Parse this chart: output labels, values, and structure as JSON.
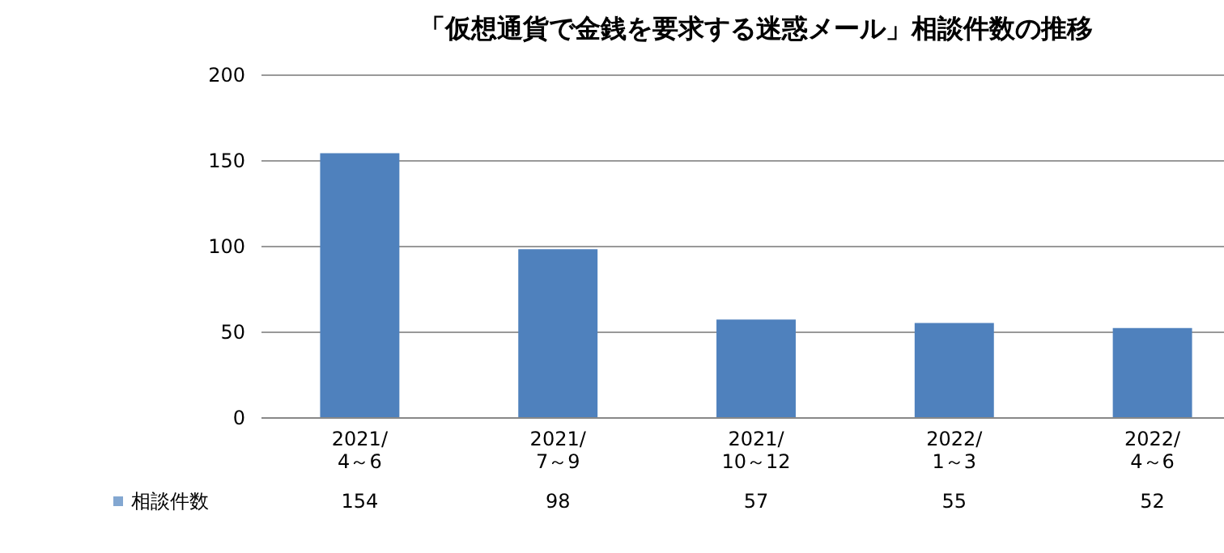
{
  "chart_data": {
    "type": "bar",
    "title": "「仮想通貨で金銭を要求する迷惑メール」相談件数の推移",
    "categories": [
      "2021/4～6",
      "2021/7～9",
      "2021/10～12",
      "2022/1～3",
      "2022/4～6"
    ],
    "series": [
      {
        "name": "相談件数",
        "color": "#4f81bd",
        "values": [
          154,
          98,
          57,
          55,
          52
        ]
      }
    ],
    "ylim": [
      0,
      200
    ],
    "yticks": [
      0,
      50,
      100,
      150,
      200
    ],
    "grid": "y",
    "legend": "bottom left",
    "data_labels": true
  }
}
